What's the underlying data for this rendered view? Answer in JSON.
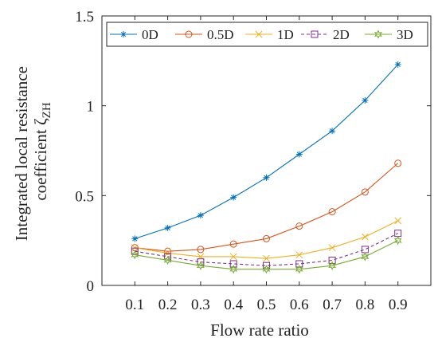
{
  "chart_data": {
    "type": "line",
    "xlabel": "Flow rate ratio",
    "ylabel_lines": [
      "Integrated local resistance",
      "coefficient ζ"
    ],
    "ylabel_subscript": "ZH",
    "x": [
      0.1,
      0.2,
      0.3,
      0.4,
      0.5,
      0.6,
      0.7,
      0.8,
      0.9
    ],
    "x_tick_labels": [
      "0.1",
      "0.2",
      "0.3",
      "0.4",
      "0.5",
      "0.6",
      "0.7",
      "0.8",
      "0.9"
    ],
    "xlim": [
      0,
      1
    ],
    "ylim": [
      0,
      1.5
    ],
    "y_ticks": [
      0,
      0.5,
      1,
      1.5
    ],
    "y_tick_labels": [
      "0",
      "0.5",
      "1",
      "1.5"
    ],
    "grid": false,
    "legend_position": "top",
    "series": [
      {
        "name": "0D",
        "color": "#0072BD",
        "marker": "asterisk",
        "line": "solid",
        "values": [
          0.26,
          0.32,
          0.39,
          0.49,
          0.6,
          0.73,
          0.86,
          1.03,
          1.23
        ]
      },
      {
        "name": "0.5D",
        "color": "#D95319",
        "marker": "circle",
        "line": "solid",
        "values": [
          0.21,
          0.19,
          0.2,
          0.23,
          0.26,
          0.33,
          0.41,
          0.52,
          0.68
        ]
      },
      {
        "name": "1D",
        "color": "#EDB120",
        "marker": "x",
        "line": "solid",
        "values": [
          0.21,
          0.18,
          0.16,
          0.16,
          0.15,
          0.17,
          0.21,
          0.27,
          0.36
        ]
      },
      {
        "name": "2D",
        "color": "#7E2F8E",
        "marker": "square",
        "line": "dashed",
        "values": [
          0.19,
          0.16,
          0.13,
          0.12,
          0.11,
          0.12,
          0.14,
          0.2,
          0.29
        ]
      },
      {
        "name": "3D",
        "color": "#77AC30",
        "marker": "hexagram",
        "line": "solid",
        "values": [
          0.17,
          0.14,
          0.11,
          0.09,
          0.09,
          0.09,
          0.11,
          0.16,
          0.25
        ]
      }
    ]
  }
}
